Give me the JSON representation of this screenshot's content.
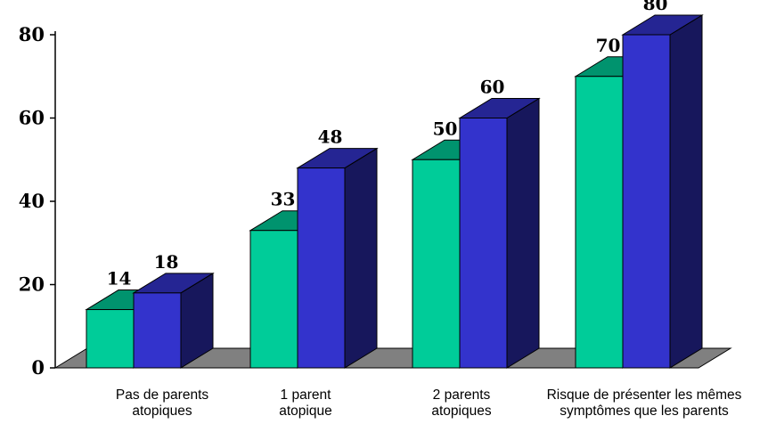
{
  "chart_data": {
    "type": "bar",
    "categories": [
      [
        "Pas de parents",
        "atopiques"
      ],
      [
        "1 parent",
        "atopique"
      ],
      [
        "2 parents",
        "atopiques"
      ],
      [
        "Risque de présenter les mêmes",
        "symptômes que les parents"
      ]
    ],
    "series": [
      {
        "values": [
          14,
          33,
          50,
          70
        ],
        "color": "#00cc99"
      },
      {
        "values": [
          18,
          48,
          60,
          80
        ],
        "color": "#3333cc"
      }
    ],
    "yticks": [
      0,
      20,
      40,
      60,
      80
    ],
    "ylim": [
      0,
      80
    ],
    "grid": false,
    "legend": "none",
    "style": "3d-clustered-column",
    "floor_color": "#808080"
  }
}
